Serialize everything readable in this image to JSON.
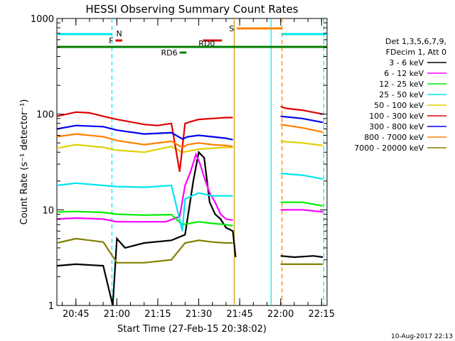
{
  "chart_data": {
    "type": "line",
    "title": "HESSI Observing Summary Count Rates",
    "xlabel": "Start Time (27-Feb-15 20:38:02)",
    "ylabel": "Count Rate (s⁻¹ detector⁻¹)",
    "x_ticks": [
      "20:45",
      "21:00",
      "21:15",
      "21:30",
      "21:45",
      "22:00",
      "22:15"
    ],
    "x_tick_minutes": [
      45,
      60,
      75,
      90,
      105,
      120,
      135
    ],
    "x_range_minutes": [
      38.03,
      137
    ],
    "y_scale": "log",
    "y_ticks": [
      "1",
      "10",
      "100",
      "1000"
    ],
    "y_tick_values": [
      1,
      10,
      100,
      1000
    ],
    "ylim": [
      1,
      1000
    ],
    "legend": {
      "position": "right",
      "header_line1": "Det 1,3,5,6,7,9,",
      "header_line2": "FDecim 1, Att 0",
      "entries": [
        {
          "label": "3 - 6 keV",
          "color": "#000000"
        },
        {
          "label": "6 - 12 keV",
          "color": "#ff00ff"
        },
        {
          "label": "12 - 25 keV",
          "color": "#00ee00"
        },
        {
          "label": "25 - 50 keV",
          "color": "#00e5ee"
        },
        {
          "label": "50 - 100 keV",
          "color": "#e0d000"
        },
        {
          "label": "100 - 300 keV",
          "color": "#e00000"
        },
        {
          "label": "300 - 800 keV",
          "color": "#0000ee"
        },
        {
          "label": "800 - 7000 keV",
          "color": "#ff8000"
        },
        {
          "label": "7000 - 20000 keV",
          "color": "#808000"
        }
      ]
    },
    "series": [
      {
        "name": "3 - 6 keV",
        "color": "#000000",
        "x": [
          38.03,
          45,
          55,
          58.5,
          60,
          63,
          70,
          80,
          85,
          88,
          90,
          92,
          94,
          96,
          98,
          100,
          102.5,
          103.5,
          120,
          125,
          132,
          135.5
        ],
        "y": [
          2.6,
          2.7,
          2.6,
          1,
          5,
          4,
          4.5,
          4.8,
          5.5,
          20,
          40,
          35,
          12,
          9,
          8,
          6.5,
          6,
          3.2,
          3.3,
          3.2,
          3.3,
          3.2
        ]
      },
      {
        "name": "6 - 12 keV",
        "color": "#ff00ff",
        "x": [
          38.03,
          45,
          55,
          60,
          70,
          78,
          83,
          85,
          87,
          89,
          90.5,
          92,
          94,
          96,
          98,
          100,
          102.5,
          120,
          128,
          135.5
        ],
        "y": [
          8,
          8.2,
          8,
          7.5,
          7.5,
          7.5,
          8.5,
          18,
          25,
          38,
          30,
          22,
          15,
          12,
          9,
          8,
          7.8,
          10,
          10,
          9.5
        ]
      },
      {
        "name": "12 - 25 keV",
        "color": "#00ee00",
        "x": [
          38.03,
          45,
          55,
          60,
          70,
          80,
          84,
          90,
          95,
          100,
          102.5,
          120,
          128,
          135.5
        ],
        "y": [
          9.5,
          9.6,
          9.4,
          9,
          8.8,
          8.9,
          7,
          7.5,
          7.2,
          7,
          6.8,
          12,
          12,
          11
        ]
      },
      {
        "name": "25 - 50 keV",
        "color": "#00e5ee",
        "x": [
          38.03,
          45,
          55,
          60,
          70,
          80,
          84,
          85,
          90,
          95,
          100,
          102.5,
          120,
          128,
          135.5
        ],
        "y": [
          18,
          19,
          18,
          17.5,
          17.2,
          18,
          6,
          13,
          15,
          14,
          14,
          14,
          24,
          23,
          21
        ]
      },
      {
        "name": "50 - 100 keV",
        "color": "#e0d000",
        "x": [
          38.03,
          45,
          55,
          60,
          70,
          80,
          84,
          88,
          90,
          95,
          100,
          102.5,
          120,
          128,
          135.5
        ],
        "y": [
          44,
          48,
          45,
          42,
          40,
          46,
          40,
          42,
          43,
          44,
          45,
          45,
          52,
          50,
          47
        ]
      },
      {
        "name": "100 - 300 keV",
        "color": "#e00000",
        "x": [
          38.03,
          45,
          50,
          55,
          60,
          65,
          70,
          75,
          80,
          83,
          85,
          88,
          90,
          95,
          100,
          102.5,
          120,
          122,
          128,
          135.5
        ],
        "y": [
          95,
          105,
          103,
          95,
          88,
          83,
          78,
          76,
          80,
          25,
          80,
          85,
          88,
          90,
          92,
          92,
          120,
          115,
          110,
          100
        ]
      },
      {
        "name": "300 - 800 keV",
        "color": "#0000ee",
        "x": [
          38.03,
          45,
          55,
          60,
          70,
          80,
          84,
          86,
          90,
          95,
          100,
          102.5,
          120,
          128,
          135.5
        ],
        "y": [
          70,
          76,
          74,
          68,
          62,
          64,
          55,
          58,
          60,
          58,
          56,
          54,
          95,
          90,
          82
        ]
      },
      {
        "name": "800 - 7000 keV",
        "color": "#ff8000",
        "x": [
          38.03,
          45,
          55,
          60,
          70,
          80,
          84,
          86,
          90,
          95,
          100,
          102.5,
          120,
          128,
          135.5
        ],
        "y": [
          58,
          62,
          58,
          53,
          48,
          52,
          45,
          48,
          50,
          48,
          47,
          46,
          78,
          72,
          65
        ]
      },
      {
        "name": "7000 - 20000 keV",
        "color": "#808000",
        "x": [
          38.03,
          45,
          55,
          60,
          70,
          80,
          85,
          90,
          95,
          100,
          102.5,
          120,
          128,
          135.5
        ],
        "y": [
          4.5,
          5,
          4.6,
          2.8,
          2.8,
          3,
          4.5,
          4.8,
          4.6,
          4.5,
          4.5,
          2.7,
          2.7,
          2.7
        ]
      }
    ],
    "vertical_lines": [
      {
        "x": 58.2,
        "color": "#00e5ee",
        "style": "dashed"
      },
      {
        "x": 103,
        "color": "#d09a00",
        "style": "solid"
      },
      {
        "x": 116.5,
        "color": "#00e5ee",
        "style": "solid"
      },
      {
        "x": 120.5,
        "color": "#ff8000",
        "style": "dashed"
      },
      {
        "x": 135.8,
        "color": "#00e5ee",
        "style": "dashed"
      }
    ],
    "flag_bars": [
      {
        "label": "",
        "color": "#00e5ee",
        "x_start": 38.03,
        "x_end": 58.2,
        "level": 1
      },
      {
        "label": "N",
        "color": "#00e5ee",
        "x_start": 58.2,
        "x_end": 58.2,
        "level": 1
      },
      {
        "label": "F",
        "color": "#e00000",
        "x_start": 59.5,
        "x_end": 62,
        "level": 2
      },
      {
        "label": "S",
        "color": "#ff8000",
        "x_start": 104,
        "x_end": 120.5,
        "level": 0
      },
      {
        "label": "",
        "color": "#00e5ee",
        "x_start": 120.5,
        "x_end": 137,
        "level": 1
      },
      {
        "label": "RD0",
        "color": "#e00000",
        "x_start": 91.5,
        "x_end": 98.5,
        "level": 2
      },
      {
        "label": "",
        "color": "#008000",
        "x_start": 38.03,
        "x_end": 137,
        "level": 3
      },
      {
        "label": "RD6",
        "color": "#008000",
        "x_start": 83,
        "x_end": 85.5,
        "level": 4
      }
    ],
    "footer_stamp": "10-Aug-2017 22:13"
  }
}
